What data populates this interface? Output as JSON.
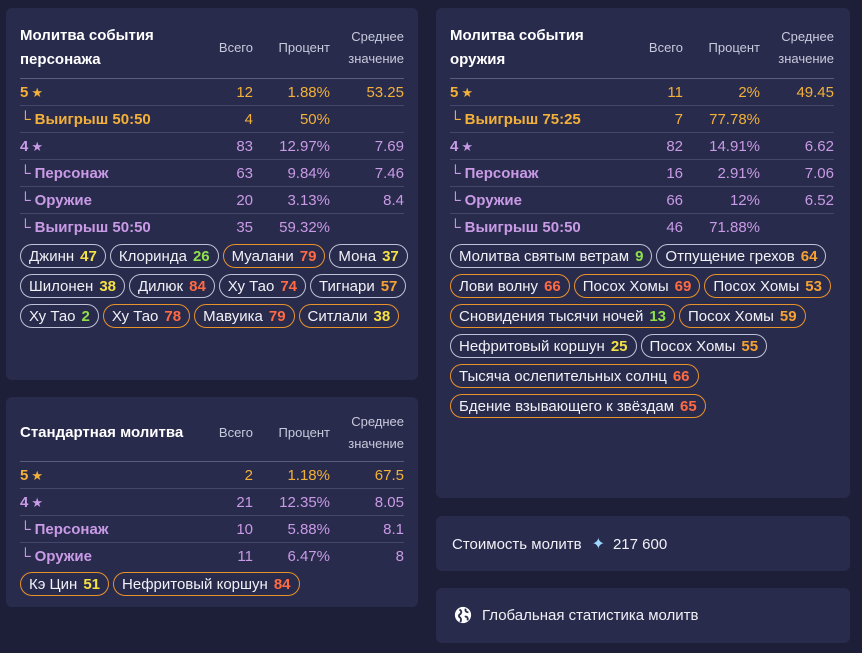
{
  "colors": {
    "five_star": "#f3b13a",
    "four_star": "#c99ae6",
    "low": "#8fe04a",
    "mid": "#f5e142",
    "high": "#f6a233",
    "very_high": "#ff6a42"
  },
  "headers": {
    "total": "Всего",
    "percent": "Процент",
    "average": "Среднее значение"
  },
  "character_banner": {
    "title": "Молитва события персонажа",
    "rows": [
      {
        "label": "5",
        "total": "12",
        "percent": "1.88%",
        "avg": "53.25"
      },
      {
        "label": "Выигрыш 50:50",
        "total": "4",
        "percent": "50%",
        "avg": ""
      },
      {
        "label": "4",
        "total": "83",
        "percent": "12.97%",
        "avg": "7.69"
      },
      {
        "label": "Персонаж",
        "total": "63",
        "percent": "9.84%",
        "avg": "7.46"
      },
      {
        "label": "Оружие",
        "total": "20",
        "percent": "3.13%",
        "avg": "8.4"
      },
      {
        "label": "Выигрыш 50:50",
        "total": "35",
        "percent": "59.32%",
        "avg": ""
      }
    ],
    "chips": [
      {
        "name": "Джинн",
        "n": "47"
      },
      {
        "name": "Клоринда",
        "n": "26"
      },
      {
        "name": "Муалани",
        "n": "79"
      },
      {
        "name": "Мона",
        "n": "37"
      },
      {
        "name": "Шилонен",
        "n": "38"
      },
      {
        "name": "Дилюк",
        "n": "84"
      },
      {
        "name": "Ху Тао",
        "n": "74"
      },
      {
        "name": "Тигнари",
        "n": "57"
      },
      {
        "name": "Ху Тао",
        "n": "2"
      },
      {
        "name": "Ху Тао",
        "n": "78"
      },
      {
        "name": "Мавуика",
        "n": "79"
      },
      {
        "name": "Ситлали",
        "n": "38"
      }
    ]
  },
  "standard_banner": {
    "title": "Стандартная молитва",
    "rows": [
      {
        "label": "5",
        "total": "2",
        "percent": "1.18%",
        "avg": "67.5"
      },
      {
        "label": "4",
        "total": "21",
        "percent": "12.35%",
        "avg": "8.05"
      },
      {
        "label": "Персонаж",
        "total": "10",
        "percent": "5.88%",
        "avg": "8.1"
      },
      {
        "label": "Оружие",
        "total": "11",
        "percent": "6.47%",
        "avg": "8"
      }
    ],
    "chips": [
      {
        "name": "Кэ Цин",
        "n": "51"
      },
      {
        "name": "Нефритовый коршун",
        "n": "84"
      }
    ]
  },
  "weapon_banner": {
    "title": "Молитва события оружия",
    "rows": [
      {
        "label": "5",
        "total": "11",
        "percent": "2%",
        "avg": "49.45"
      },
      {
        "label": "Выигрыш 75:25",
        "total": "7",
        "percent": "77.78%",
        "avg": ""
      },
      {
        "label": "4",
        "total": "82",
        "percent": "14.91%",
        "avg": "6.62"
      },
      {
        "label": "Персонаж",
        "total": "16",
        "percent": "2.91%",
        "avg": "7.06"
      },
      {
        "label": "Оружие",
        "total": "66",
        "percent": "12%",
        "avg": "6.52"
      },
      {
        "label": "Выигрыш 50:50",
        "total": "46",
        "percent": "71.88%",
        "avg": ""
      }
    ],
    "chips": [
      {
        "name": "Молитва святым ветрам",
        "n": "9"
      },
      {
        "name": "Отпущение грехов",
        "n": "64"
      },
      {
        "name": "Лови волну",
        "n": "66"
      },
      {
        "name": "Посох Хомы",
        "n": "69"
      },
      {
        "name": "Посох Хомы",
        "n": "53"
      },
      {
        "name": "Сновидения тысячи ночей",
        "n": "13"
      },
      {
        "name": "Посох Хомы",
        "n": "59"
      },
      {
        "name": "Нефритовый коршун",
        "n": "25"
      },
      {
        "name": "Посох Хомы",
        "n": "55"
      },
      {
        "name": "Тысяча ослепительных солнц",
        "n": "66"
      },
      {
        "name": "Бдение взывающего к звёздам",
        "n": "65"
      }
    ]
  },
  "cost": {
    "label": "Стоимость молитв",
    "value": "217 600",
    "icon": "primogem-icon"
  },
  "global": {
    "label": "Глобальная статистика молитв",
    "icon": "globe-icon"
  }
}
